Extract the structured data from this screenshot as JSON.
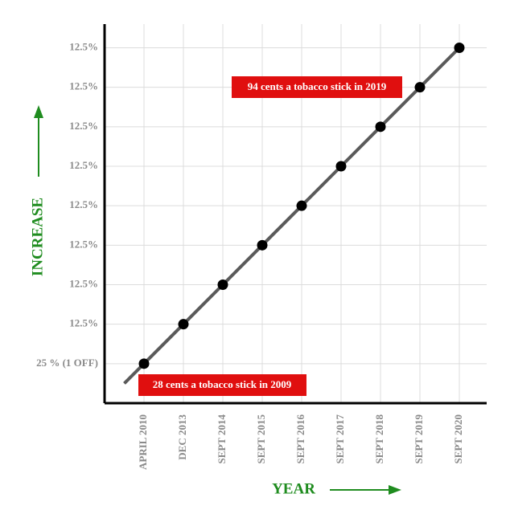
{
  "chart_data": {
    "type": "line",
    "x_label": "YEAR",
    "y_label": "INCREASE",
    "categories": [
      "APRIL 2010",
      "DEC 2013",
      "SEPT 2014",
      "SEPT 2015",
      "SEPT 2016",
      "SEPT 2017",
      "SEPT 2018",
      "SEPT 2019",
      "SEPT 2020"
    ],
    "values": [
      1,
      2,
      3,
      4,
      5,
      6,
      7,
      8,
      9
    ],
    "color": "#5a5a5a",
    "point_color": "#000000",
    "ylim": [
      0,
      9.6
    ],
    "yticks": [
      {
        "value": 1,
        "label": "25 % (1 OFF)"
      },
      {
        "value": 2,
        "label": "12.5%"
      },
      {
        "value": 3,
        "label": "12.5%"
      },
      {
        "value": 4,
        "label": "12.5%"
      },
      {
        "value": 5,
        "label": "12.5%"
      },
      {
        "value": 6,
        "label": "12.5%"
      },
      {
        "value": 7,
        "label": "12.5%"
      },
      {
        "value": 8,
        "label": "12.5%"
      },
      {
        "value": 9,
        "label": "12.5%"
      }
    ],
    "grid": true,
    "annotations": [
      "94 cents a tobacco stick in 2019",
      "28 cents a tobacco stick in 2009"
    ]
  }
}
